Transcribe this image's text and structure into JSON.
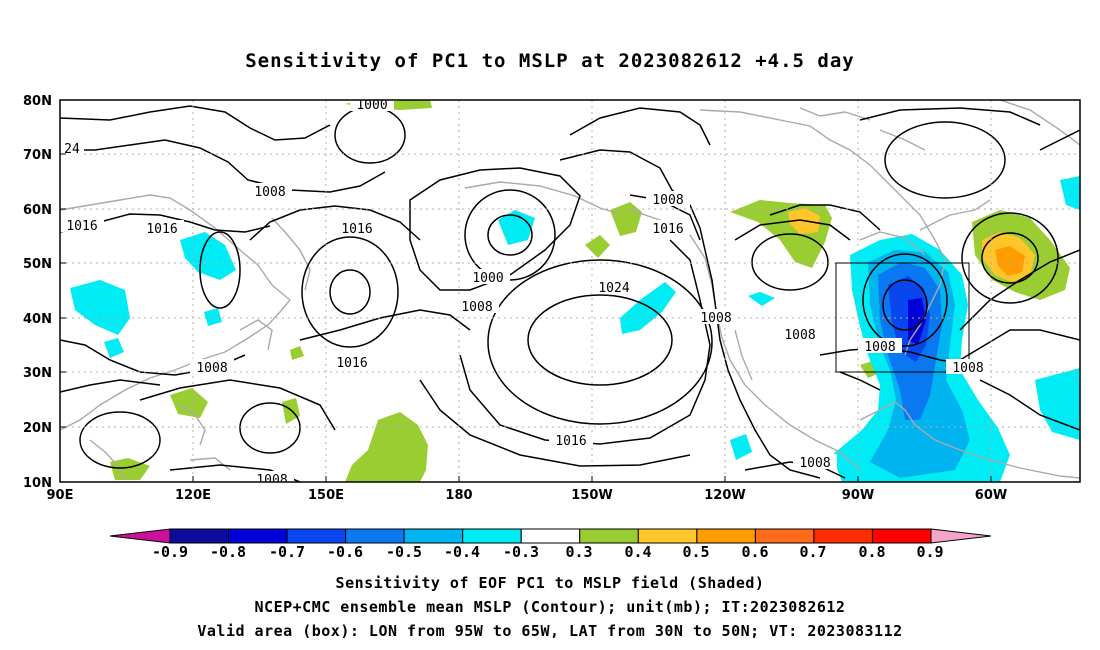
{
  "title": "Sensitivity of PC1 to MSLP at 2023082612 +4.5 day",
  "lat_labels": [
    "80N",
    "70N",
    "60N",
    "50N",
    "40N",
    "30N",
    "20N",
    "10N"
  ],
  "lon_labels": [
    "90E",
    "120E",
    "150E",
    "180",
    "150W",
    "120W",
    "90W",
    "60W"
  ],
  "contour_labels": [
    {
      "text": "1000"
    },
    {
      "text": "24"
    },
    {
      "text": "1008"
    },
    {
      "text": "1016"
    },
    {
      "text": "1016"
    },
    {
      "text": "1016"
    },
    {
      "text": "1008"
    },
    {
      "text": "1016"
    },
    {
      "text": "1000"
    },
    {
      "text": "1008"
    },
    {
      "text": "1024"
    },
    {
      "text": "1008"
    },
    {
      "text": "1008"
    },
    {
      "text": "1008"
    },
    {
      "text": "1008"
    },
    {
      "text": "1016"
    },
    {
      "text": "1008"
    },
    {
      "text": "1008"
    },
    {
      "text": "1016"
    },
    {
      "text": "1008"
    }
  ],
  "colorbar": {
    "labels": [
      "-0.9",
      "-0.8",
      "-0.7",
      "-0.6",
      "-0.5",
      "-0.4",
      "-0.3",
      "0.3",
      "0.4",
      "0.5",
      "0.6",
      "0.7",
      "0.8",
      "0.9"
    ],
    "colors": [
      "#0b0b9c",
      "#0000d8",
      "#0a46f0",
      "#0a78f0",
      "#00b4f0",
      "#00ecf4",
      "#ffffff",
      "#9acd32",
      "#ffc62b",
      "#ff9d00",
      "#ff6a1a",
      "#ff2d00",
      "#ff0000"
    ],
    "low_end_color": "#c8109a",
    "high_end_color": "#f5a6c8"
  },
  "captions": [
    "Sensitivity of EOF PC1 to MSLP field (Shaded)",
    "NCEP+CMC ensemble mean MSLP (Contour); unit(mb); IT:2023082612",
    "Valid area (box): LON from 95W to 65W, LAT from 30N to 50N; VT: 2023083112"
  ]
}
